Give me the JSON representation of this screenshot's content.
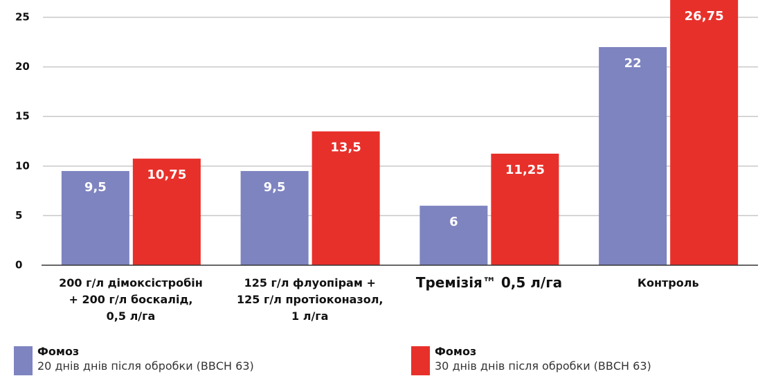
{
  "chart_data": {
    "type": "bar",
    "categories": [
      "200 г/л дімоксістробін\n+ 200 г/л боскалід,\n0,5 л/га",
      "125 г/л флуопірам +\n125 г/л протіоконазол,\n1 л/га",
      "Тремізія™ 0,5 л/га",
      "Контроль"
    ],
    "series": [
      {
        "name": "Фомоз",
        "description": "20 днів днів після обробки (ВВСН 63)",
        "color": "#7e84c0",
        "values": [
          9.5,
          9.5,
          6,
          22
        ],
        "value_labels": [
          "9,5",
          "9,5",
          "6",
          "22"
        ]
      },
      {
        "name": "Фомоз",
        "description": "30 днів днів після обробки (ВВСН 63)",
        "color": "#e8302a",
        "values": [
          10.75,
          13.5,
          11.25,
          26.75
        ],
        "value_labels": [
          "10,75",
          "13,5",
          "11,25",
          "26,75"
        ]
      }
    ],
    "ylim": [
      0,
      26.75
    ],
    "yticks": [
      0,
      5,
      10,
      15,
      20,
      25
    ],
    "grid": true
  }
}
